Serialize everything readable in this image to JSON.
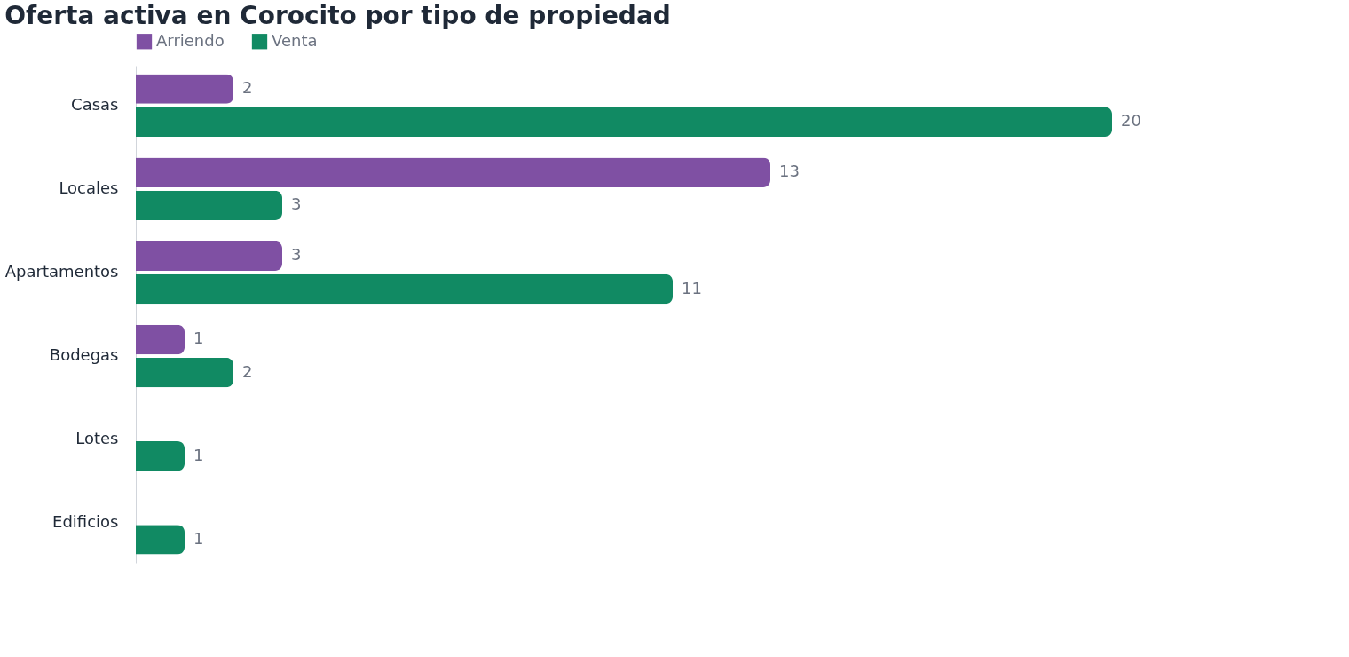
{
  "chart_data": {
    "type": "bar",
    "orientation": "horizontal",
    "title": "Oferta activa en Corocito por tipo de propiedad",
    "categories": [
      "Casas",
      "Locales",
      "Apartamentos",
      "Bodegas",
      "Lotes",
      "Edificios"
    ],
    "series": [
      {
        "name": "Arriendo",
        "color": "#7f50a3",
        "values": [
          2,
          13,
          3,
          1,
          null,
          null
        ]
      },
      {
        "name": "Venta",
        "color": "#118a63",
        "values": [
          20,
          3,
          11,
          2,
          1,
          1
        ]
      }
    ],
    "data_labels": true,
    "legend": "top left"
  }
}
